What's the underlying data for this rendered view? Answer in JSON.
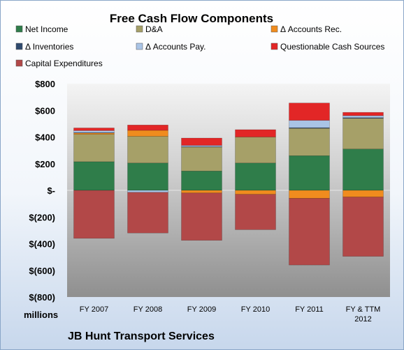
{
  "chart_data": {
    "type": "bar",
    "stacked": true,
    "title": "Free Cash Flow Components",
    "ylabel": "millions",
    "footer": "JB Hunt Transport Services",
    "ylim": [
      -800,
      800
    ],
    "ytick_values": [
      800,
      600,
      400,
      200,
      0,
      -200,
      -400,
      -600,
      -800
    ],
    "ytick_labels": [
      "$800",
      "$600",
      "$400",
      "$200",
      "$-",
      "$(200)",
      "$(400)",
      "$(600)",
      "$(800)"
    ],
    "categories": [
      [
        "FY 2007"
      ],
      [
        "FY 2008"
      ],
      [
        "FY 2009"
      ],
      [
        "FY 2010"
      ],
      [
        "FY 2011"
      ],
      [
        "FY & TTM",
        "2012"
      ]
    ],
    "legend_position": "top",
    "grid": false,
    "series": [
      {
        "name": "Net Income",
        "color": "#2f7d4a",
        "values": [
          215,
          205,
          145,
          205,
          260,
          310
        ]
      },
      {
        "name": "D&A",
        "color": "#a6a068",
        "values": [
          205,
          200,
          180,
          195,
          205,
          230
        ]
      },
      {
        "name": "Δ Accounts Rec.",
        "color": "#f08c1e",
        "values": [
          10,
          45,
          -20,
          -30,
          -60,
          -50
        ]
      },
      {
        "name": "Δ Inventories",
        "color": "#2e4a6e",
        "values": [
          3,
          0,
          2,
          0,
          5,
          5
        ]
      },
      {
        "name": "Δ Accounts Pay.",
        "color": "#a9c4e6",
        "values": [
          15,
          -15,
          10,
          0,
          55,
          15
        ]
      },
      {
        "name": "Questionable Cash Sources",
        "color": "#e22626",
        "values": [
          20,
          40,
          55,
          55,
          130,
          25
        ]
      },
      {
        "name": "Capital Expenditures",
        "color": "#b24848",
        "values": [
          -360,
          -305,
          -355,
          -265,
          -500,
          -445
        ]
      }
    ]
  }
}
